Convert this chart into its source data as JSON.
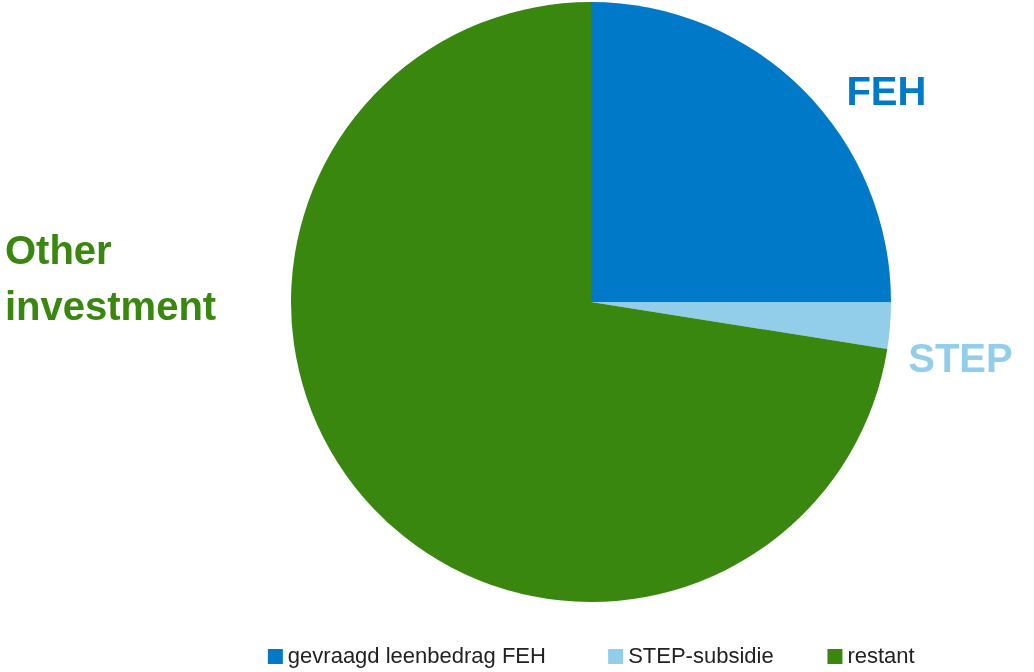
{
  "chart_data": {
    "type": "pie",
    "categories": [
      "gevraagd leenbedrag FEH",
      "STEP-subsidie",
      "restant"
    ],
    "values": [
      25,
      2.5,
      72.5
    ],
    "colors": [
      "#0079c8",
      "#92cdea",
      "#3a870f"
    ],
    "annotations": [
      "FEH",
      "STEP",
      "Other investment"
    ],
    "legend": "bottom"
  }
}
